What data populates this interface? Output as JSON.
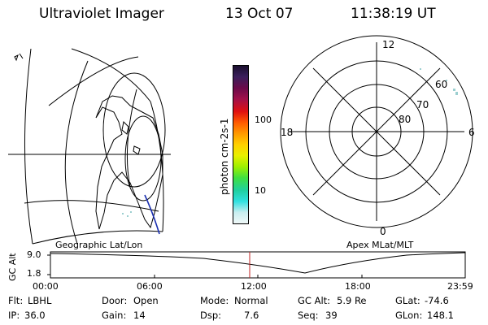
{
  "header": {
    "instrument": "Ultraviolet Imager",
    "date": "13 Oct 07",
    "time": "11:38:19 UT"
  },
  "colorbar": {
    "unit_label": "photon cm-2s-1",
    "ticks": [
      "100",
      "10"
    ],
    "colors": [
      "#1a0f2e",
      "#3b1f5c",
      "#6a0a4a",
      "#a0104a",
      "#e01010",
      "#ff5a00",
      "#ff9a00",
      "#ffd000",
      "#e8f000",
      "#9ff000",
      "#40e040",
      "#20d0a0",
      "#30e0e0",
      "#c8eef0",
      "#f0f8f8"
    ]
  },
  "left_panel": {
    "caption": "Geographic Lat/Lon"
  },
  "right_panel": {
    "caption": "Apex MLat/MLT",
    "mlt_labels": {
      "top": "12",
      "left": "18",
      "right": "6",
      "bottom": "0"
    },
    "lat_labels": [
      "60",
      "70",
      "80"
    ]
  },
  "altitude_plot": {
    "ylabel": "GC Alt",
    "yticks": [
      "9.0",
      "1.8"
    ],
    "xticks": [
      "00:00",
      "06:00",
      "12:00",
      "18:00",
      "23:59"
    ]
  },
  "footer": {
    "row1": {
      "flt_label": "Flt:",
      "flt_value": "LBHL",
      "door_label": "Door:",
      "door_value": "Open",
      "mode_label": "Mode:",
      "mode_value": "Normal",
      "gcalt_label": "GC Alt:",
      "gcalt_value": "5.9 Re",
      "glat_label": "GLat:",
      "glat_value": "-74.6"
    },
    "row2": {
      "ip_label": "IP:",
      "ip_value": "36.0",
      "gain_label": "Gain:",
      "gain_value": "14",
      "dsp_label": "Dsp:",
      "dsp_value": "7.6",
      "seq_label": "Seq:",
      "seq_value": "39",
      "glon_label": "GLon:",
      "glon_value": "148.1"
    }
  }
}
